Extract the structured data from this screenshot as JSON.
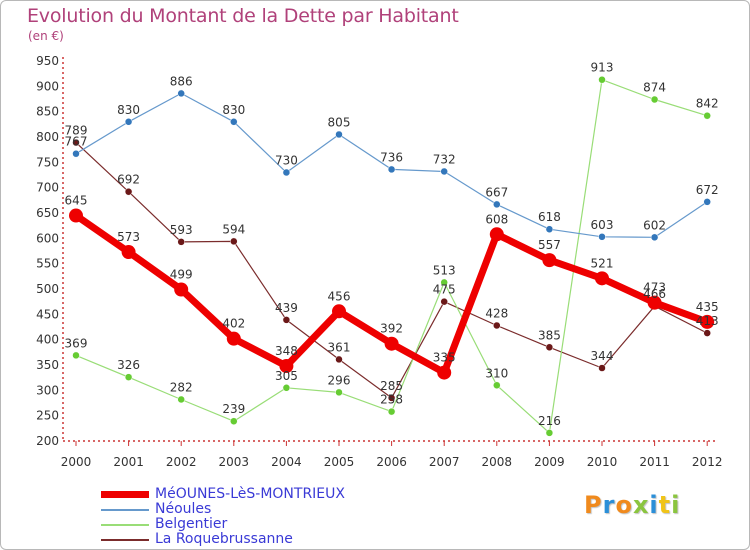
{
  "title": "Evolution du Montant de la Dette par Habitant",
  "subtitle": "(en €)",
  "brand": {
    "text": "Proxiti",
    "colors": [
      "#f08a1d",
      "#2b8fd8",
      "#f08a1d",
      "#8bc53f",
      "#2b8fd8",
      "#f0c419",
      "#8bc53f"
    ]
  },
  "chart_data": {
    "type": "line",
    "x": [
      "2000",
      "2001",
      "2002",
      "2003",
      "2004",
      "2005",
      "2006",
      "2007",
      "2008",
      "2009",
      "2010",
      "2011",
      "2012"
    ],
    "ylim": [
      200,
      950
    ],
    "yticks": [
      "200",
      "250",
      "300",
      "350",
      "400",
      "450",
      "500",
      "550",
      "600",
      "650",
      "700",
      "750",
      "800",
      "850",
      "900",
      "950"
    ],
    "grid": false,
    "legend_position": "bottom",
    "series": [
      {
        "name": "La Roquebrussanne",
        "color": "#7b2c2c",
        "point_color": "#6b1818",
        "width": 1.2,
        "values": [
          789,
          692,
          593,
          594,
          439,
          361,
          285,
          475,
          428,
          385,
          344,
          466,
          413
        ]
      },
      {
        "name": "Belgentier",
        "color": "#99dd77",
        "point_color": "#66cc33",
        "width": 1.2,
        "values": [
          369,
          326,
          282,
          239,
          305,
          296,
          258,
          513,
          310,
          216,
          913,
          874,
          842
        ]
      },
      {
        "name": "Néoules",
        "color": "#6699cc",
        "point_color": "#3377bb",
        "width": 1.2,
        "values": [
          767,
          830,
          886,
          830,
          730,
          805,
          736,
          732,
          667,
          618,
          603,
          602,
          672
        ]
      },
      {
        "name": "MéOUNES-LèS-MONTRIEUX",
        "color": "#ee0000",
        "point_color": "#ee0000",
        "width": 7,
        "values": [
          645,
          573,
          499,
          402,
          348,
          456,
          392,
          335,
          608,
          557,
          521,
          473,
          435
        ]
      }
    ]
  },
  "legend": [
    {
      "label": "MéOUNES-LèS-MONTRIEUX",
      "color": "#ee0000",
      "thick": true
    },
    {
      "label": "Néoules",
      "color": "#6699cc",
      "thick": false
    },
    {
      "label": "Belgentier",
      "color": "#99dd77",
      "thick": false
    },
    {
      "label": "La Roquebrussanne",
      "color": "#7b2c2c",
      "thick": false
    }
  ]
}
